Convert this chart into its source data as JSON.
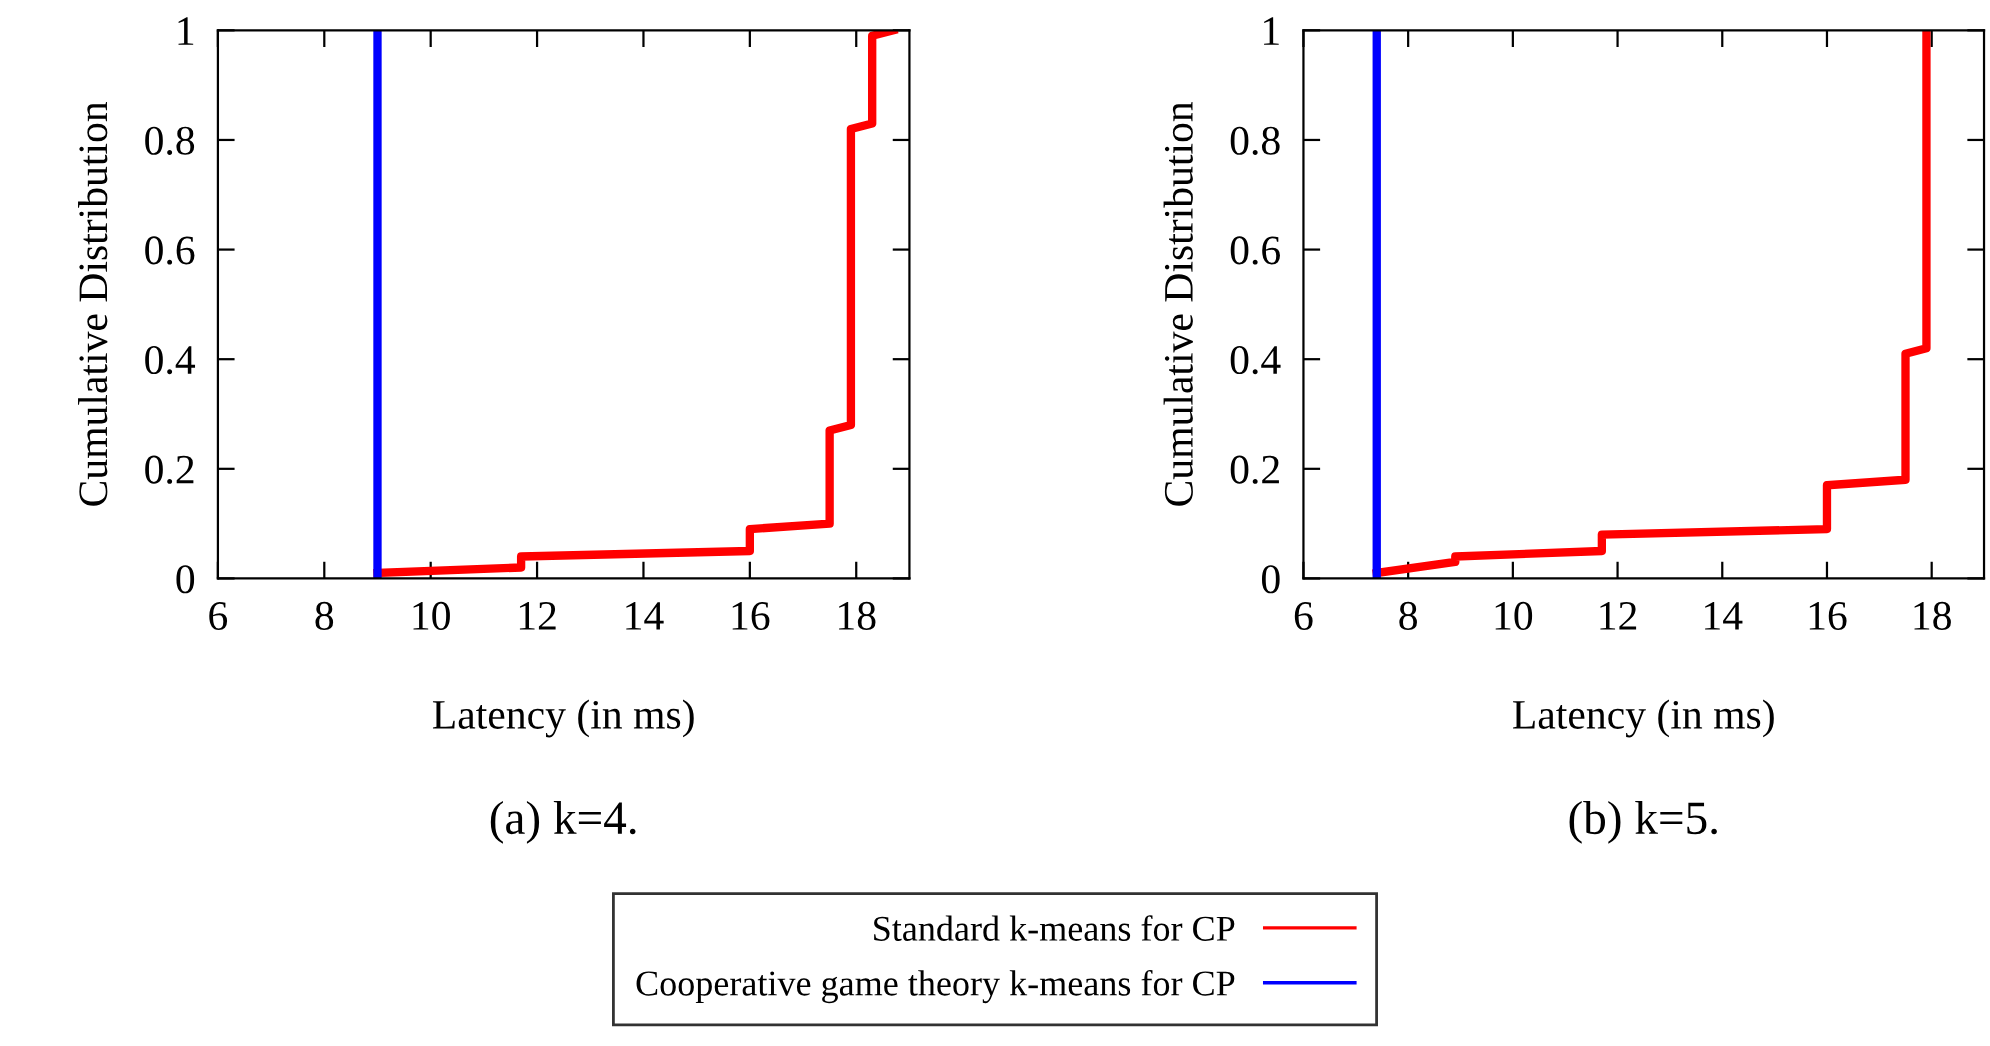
{
  "chart_data": [
    {
      "type": "line",
      "xlabel": "Latency (in ms)",
      "ylabel": "Cumulative Distribution",
      "annotations": [
        "(a) k=4."
      ],
      "xlim": [
        6,
        19
      ],
      "xticks": [
        6,
        8,
        10,
        12,
        14,
        16,
        18
      ],
      "ylim": [
        0,
        1
      ],
      "yticks": [
        0,
        0.2,
        0.4,
        0.6,
        0.8,
        1
      ],
      "grid": false,
      "legend": "bottom",
      "marker": "none",
      "line_style": "solid",
      "series": [
        {
          "name": "Standard k-means for CP",
          "color": "#ff0000",
          "x": [
            9.0,
            11.7,
            11.7,
            16.0,
            16.0,
            17.5,
            17.5,
            17.9,
            17.9,
            18.3,
            18.3,
            18.7
          ],
          "values": [
            0.01,
            0.02,
            0.04,
            0.05,
            0.09,
            0.1,
            0.27,
            0.28,
            0.82,
            0.83,
            0.99,
            1.0
          ]
        },
        {
          "name": "Cooperative game theory k-means for CP",
          "color": "#0000ff",
          "x": [
            9.0,
            9.0
          ],
          "values": [
            0,
            1
          ]
        }
      ]
    },
    {
      "type": "line",
      "xlabel": "Latency (in ms)",
      "ylabel": "Cumulative Distribution",
      "annotations": [
        "(b) k=5."
      ],
      "xlim": [
        6,
        19
      ],
      "xticks": [
        6,
        8,
        10,
        12,
        14,
        16,
        18
      ],
      "ylim": [
        0,
        1
      ],
      "yticks": [
        0,
        0.2,
        0.4,
        0.6,
        0.8,
        1
      ],
      "grid": false,
      "marker": "none",
      "line_style": "solid",
      "series": [
        {
          "color": "#ff0000",
          "x": [
            7.4,
            8.9,
            8.9,
            11.7,
            11.7,
            16.0,
            16.0,
            17.5,
            17.5,
            17.9,
            17.9
          ],
          "values": [
            0.01,
            0.03,
            0.04,
            0.05,
            0.08,
            0.09,
            0.17,
            0.18,
            0.41,
            0.42,
            1.0
          ]
        },
        {
          "color": "#0000ff",
          "x": [
            7.4,
            7.4
          ],
          "values": [
            0,
            1
          ]
        }
      ]
    }
  ]
}
